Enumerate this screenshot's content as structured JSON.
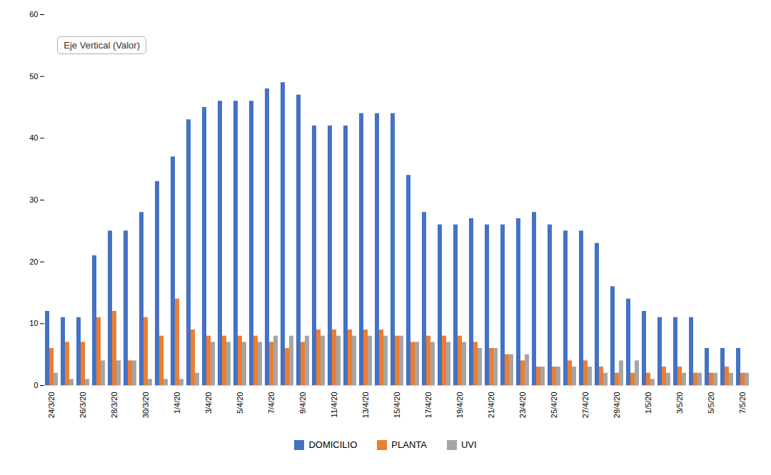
{
  "chart_data": {
    "type": "bar",
    "annotation": "Eje Vertical (Valor)",
    "categories": [
      "24/3/20",
      null,
      "26/3/20",
      null,
      "28/3/20",
      null,
      "30/3/20",
      null,
      "1/4/20",
      null,
      "3/4/20",
      null,
      "5/4/20",
      null,
      "7/4/20",
      null,
      "9/4/20",
      null,
      "11/4/20",
      null,
      "13/4/20",
      null,
      "15/4/20",
      null,
      "17/4/20",
      null,
      "19/4/20",
      null,
      "21/4/20",
      null,
      "23/4/20",
      null,
      "25/4/20",
      null,
      "27/4/20",
      null,
      "29/4/20",
      null,
      "1/5/20",
      null,
      "3/5/20",
      null,
      "5/5/20",
      null,
      "7/5/20"
    ],
    "series": [
      {
        "name": "DOMICILIO",
        "color": "#4472c4",
        "values": [
          12,
          11,
          11,
          21,
          25,
          25,
          28,
          33,
          37,
          43,
          45,
          46,
          46,
          46,
          48,
          49,
          47,
          42,
          42,
          42,
          44,
          44,
          44,
          34,
          28,
          26,
          26,
          27,
          26,
          26,
          27,
          28,
          26,
          25,
          25,
          23,
          16,
          14,
          12,
          11,
          11,
          11,
          6,
          6,
          6
        ]
      },
      {
        "name": "PLANTA",
        "color": "#ed7d31",
        "values": [
          6,
          7,
          7,
          11,
          12,
          4,
          11,
          8,
          14,
          9,
          8,
          8,
          8,
          8,
          7,
          6,
          7,
          9,
          9,
          9,
          9,
          9,
          8,
          7,
          8,
          8,
          8,
          7,
          6,
          5,
          4,
          3,
          3,
          4,
          4,
          3,
          2,
          2,
          2,
          3,
          3,
          2,
          2,
          3,
          2
        ]
      },
      {
        "name": "UVI",
        "color": "#a5a5a5",
        "values": [
          2,
          1,
          1,
          4,
          4,
          4,
          1,
          1,
          1,
          2,
          7,
          7,
          7,
          7,
          8,
          8,
          8,
          8,
          8,
          8,
          8,
          8,
          8,
          7,
          7,
          7,
          7,
          6,
          6,
          5,
          5,
          3,
          3,
          3,
          3,
          2,
          4,
          4,
          1,
          2,
          2,
          2,
          2,
          2,
          2
        ]
      }
    ],
    "ylim": [
      0,
      60
    ],
    "yticks": [
      0,
      10,
      20,
      30,
      40,
      50,
      60
    ],
    "grid": false,
    "legend": "bottom"
  }
}
